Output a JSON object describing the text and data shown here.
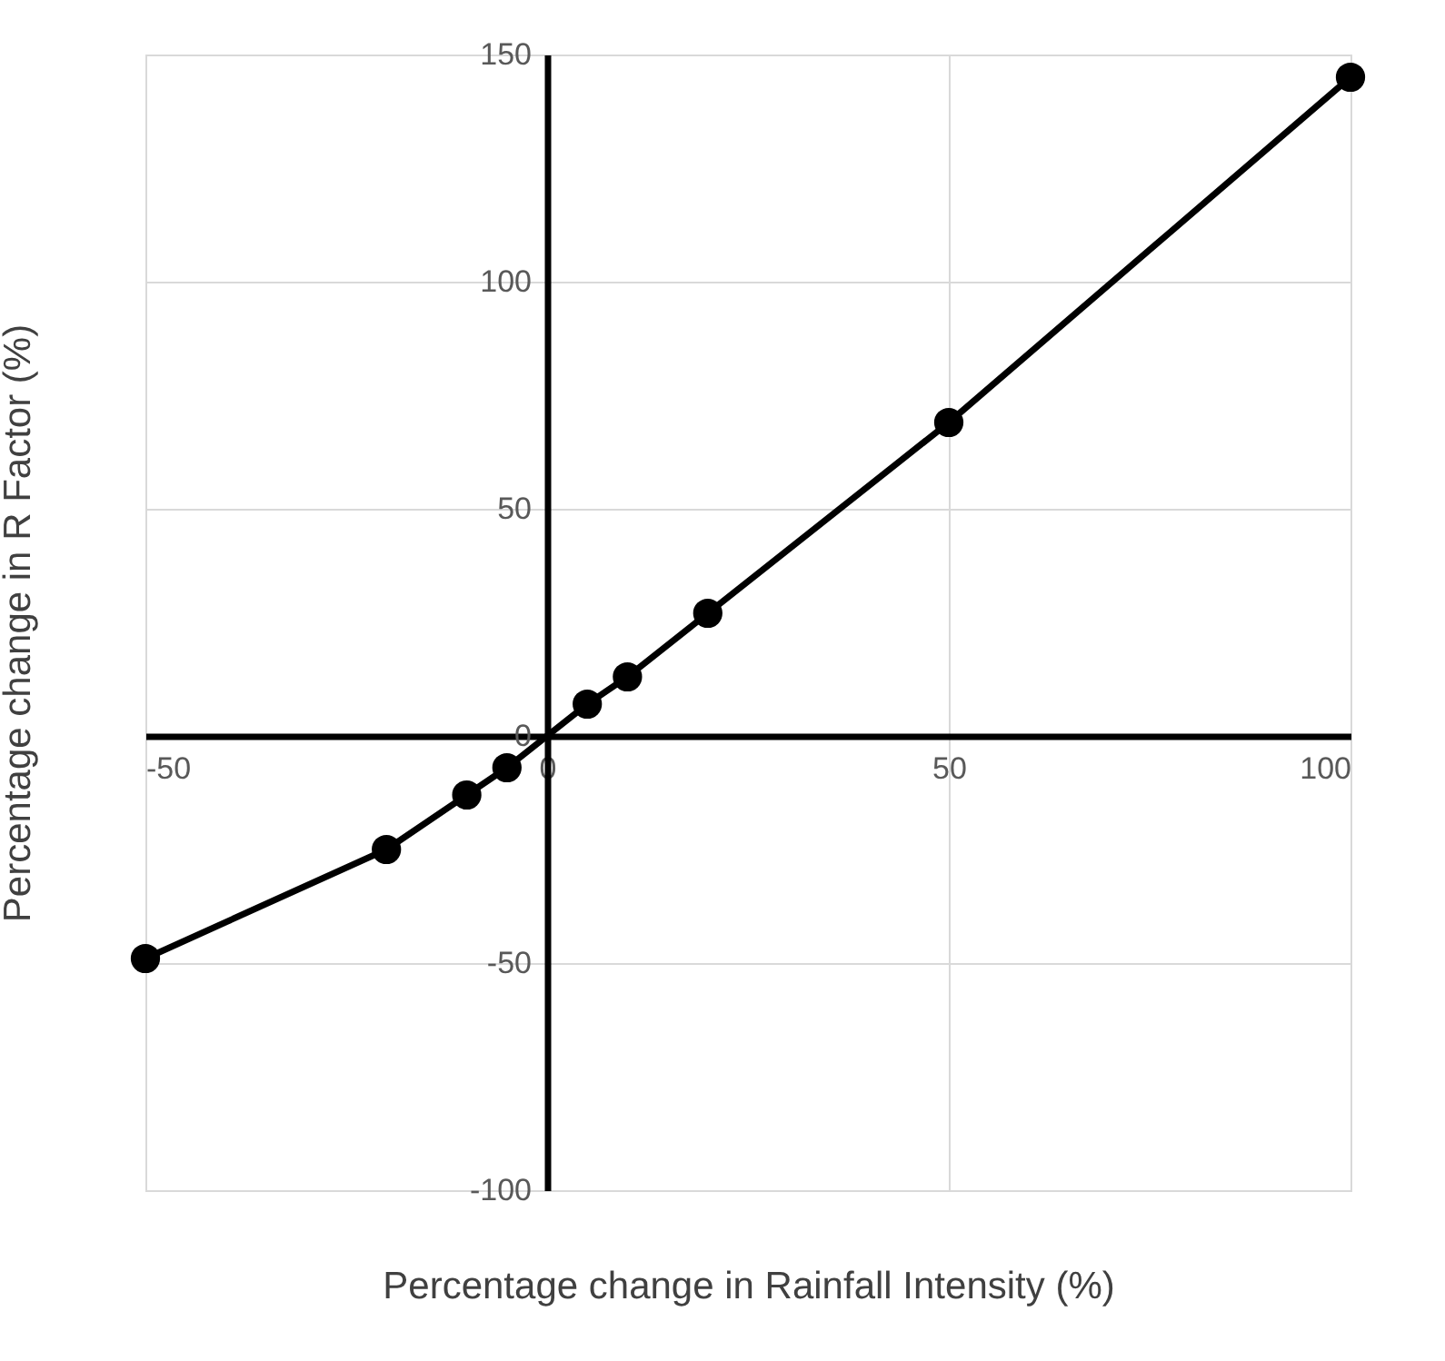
{
  "chart_data": {
    "type": "line",
    "xlabel": "Percentage change in Rainfall Intensity (%)",
    "ylabel": "Percentage change in R Factor (%)",
    "x": [
      -50,
      -20,
      -10,
      -5,
      5,
      10,
      20,
      50,
      100
    ],
    "series": [
      {
        "color": "#000000",
        "values": [
          -49,
          -25,
          -13,
          -7,
          7,
          13,
          27,
          69,
          145
        ]
      }
    ],
    "xlim": [
      -50,
      100
    ],
    "xticks": [
      -50,
      0,
      50,
      100
    ],
    "ylim": [
      -100,
      150
    ],
    "yticks": [
      -100,
      -50,
      0,
      50,
      100,
      150
    ],
    "grid": true,
    "marker": "circle",
    "line_style": "solid"
  }
}
